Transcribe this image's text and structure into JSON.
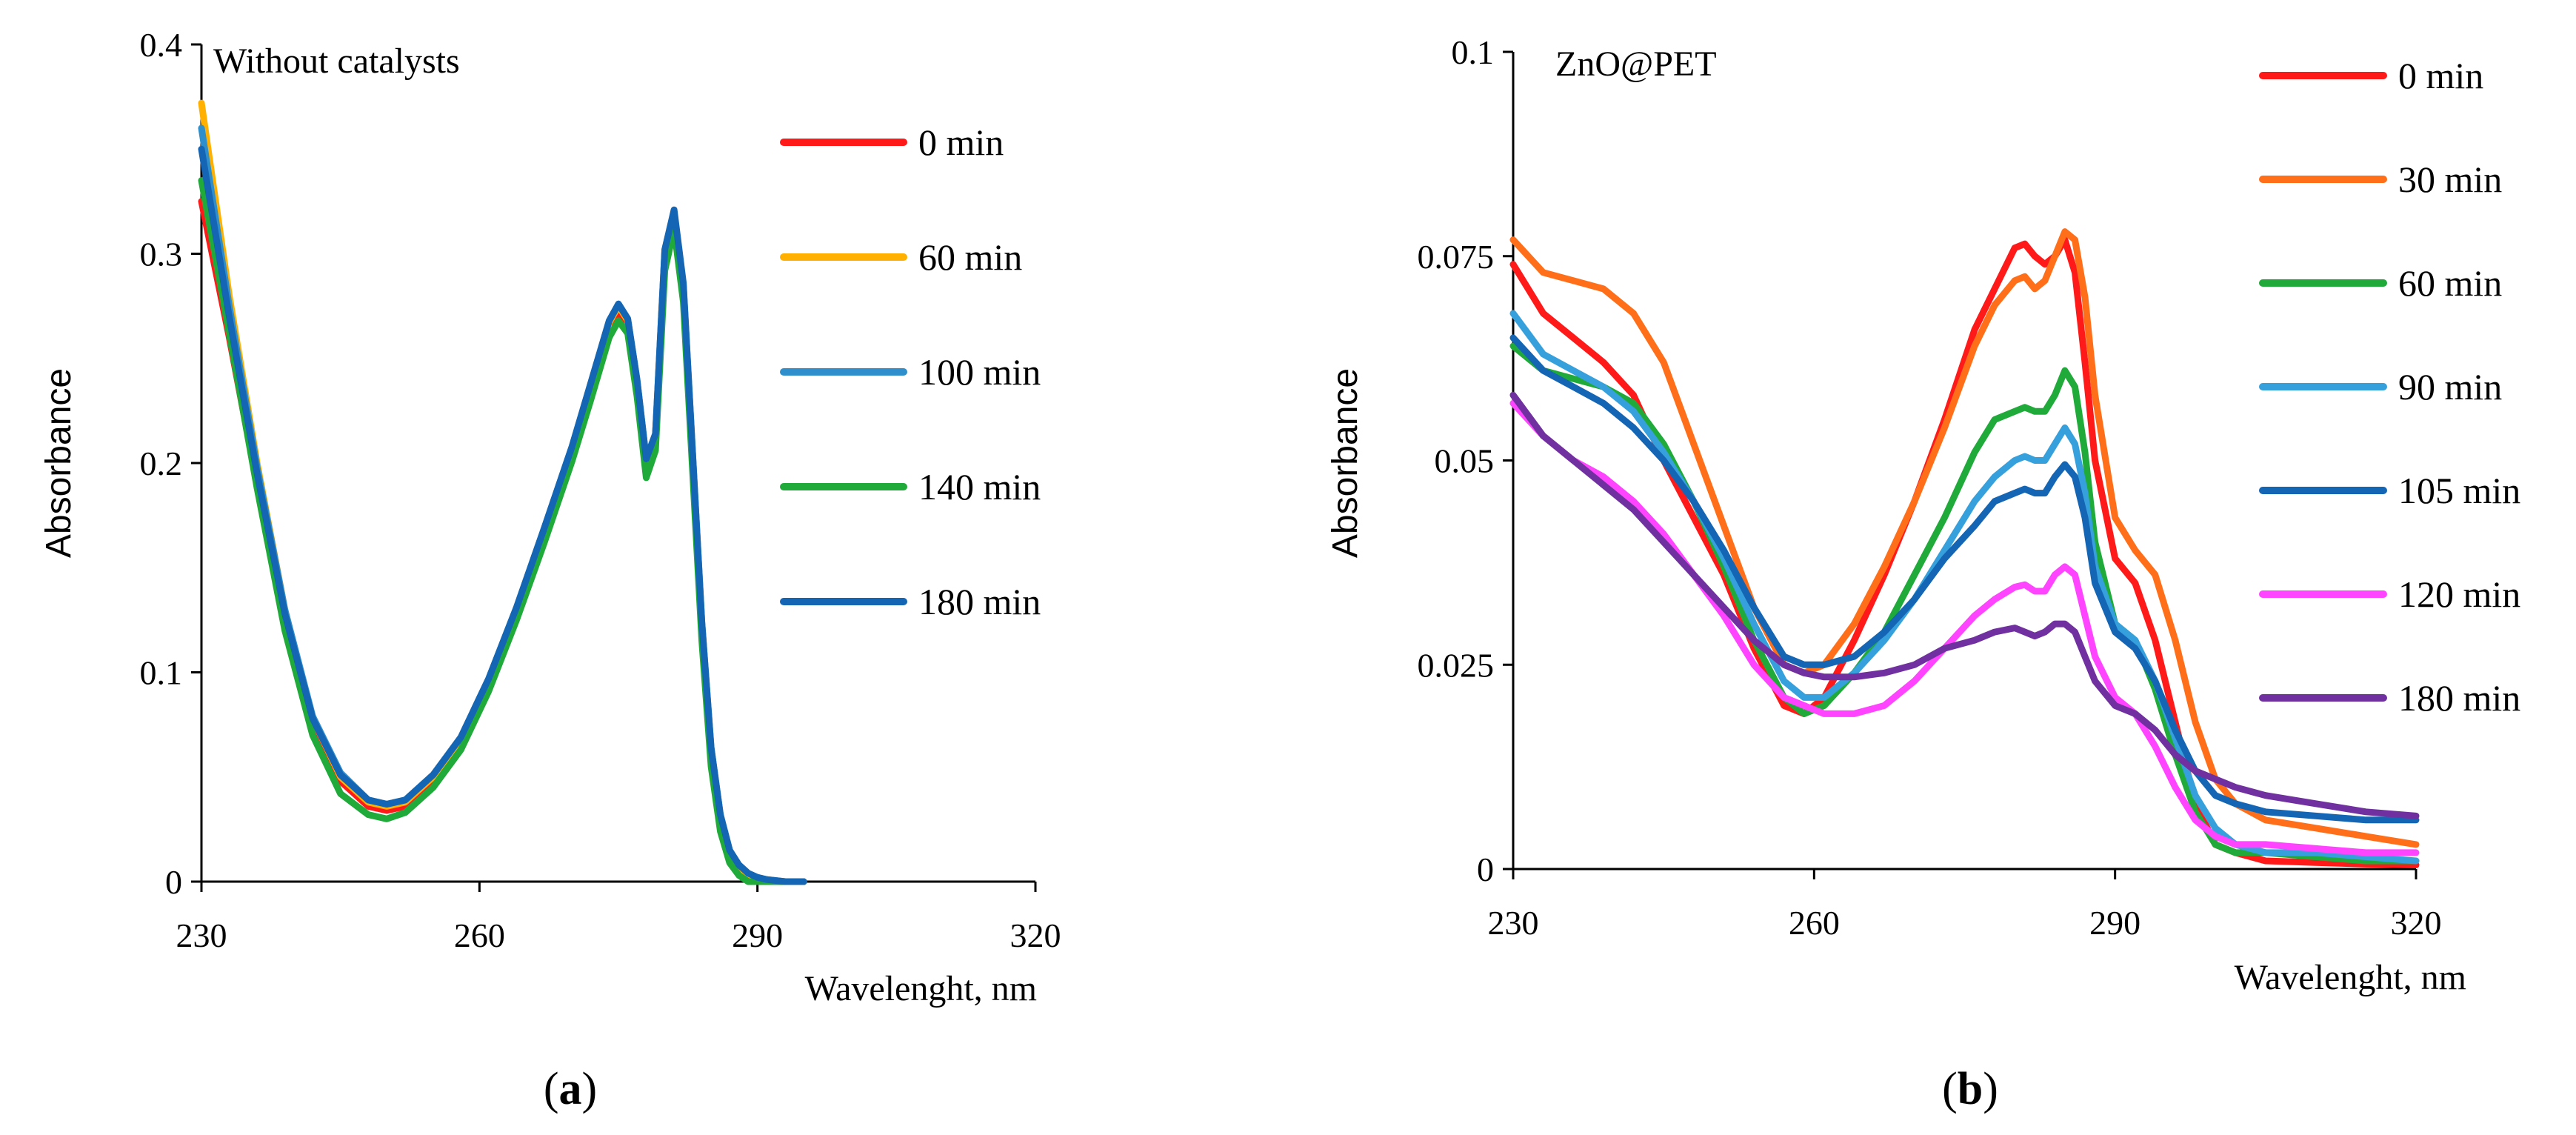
{
  "chart_data": [
    {
      "type": "line",
      "title": "Without catalysts",
      "caption": {
        "open": "(",
        "letter": "a",
        "close": ")"
      },
      "xlabel": "Wavelenght, nm",
      "ylabel": "Absorbance",
      "xlim": [
        230,
        320
      ],
      "ylim": [
        0,
        0.4
      ],
      "xticks": [
        230,
        260,
        290,
        320
      ],
      "yticks": [
        0,
        0.1,
        0.2,
        0.3,
        0.4
      ],
      "ytick_labels": [
        "0",
        "0.1",
        "0.2",
        "0.3",
        "0.4"
      ],
      "xtick_labels": [
        "230",
        "260",
        "290",
        "320"
      ],
      "series": [
        {
          "name": "0 min",
          "color": "#ff1a1a",
          "x": [
            230,
            233,
            236,
            239,
            242,
            245,
            248,
            250,
            252,
            255,
            258,
            261,
            264,
            267,
            270,
            272,
            274,
            275,
            276,
            277,
            278,
            279,
            280,
            281,
            282,
            283,
            284,
            285,
            286,
            287,
            288,
            289,
            290,
            291,
            293,
            295
          ],
          "y": [
            0.325,
            0.26,
            0.19,
            0.125,
            0.075,
            0.048,
            0.036,
            0.034,
            0.036,
            0.048,
            0.066,
            0.094,
            0.128,
            0.166,
            0.205,
            0.235,
            0.265,
            0.272,
            0.265,
            0.235,
            0.198,
            0.21,
            0.295,
            0.315,
            0.28,
            0.2,
            0.12,
            0.06,
            0.028,
            0.012,
            0.005,
            0.002,
            0,
            0,
            0,
            0
          ]
        },
        {
          "name": "60 min",
          "color": "#ffb000",
          "x": [
            230,
            233,
            236,
            239,
            242,
            245,
            248,
            250,
            252,
            255,
            258,
            261,
            264,
            267,
            270,
            272,
            274,
            275,
            276,
            277,
            278,
            279,
            280,
            281,
            282,
            283,
            284,
            285,
            286,
            287,
            288,
            289,
            290,
            291,
            293,
            295
          ],
          "y": [
            0.372,
            0.28,
            0.2,
            0.13,
            0.078,
            0.05,
            0.038,
            0.036,
            0.038,
            0.05,
            0.068,
            0.096,
            0.13,
            0.168,
            0.207,
            0.237,
            0.267,
            0.275,
            0.268,
            0.238,
            0.2,
            0.212,
            0.3,
            0.318,
            0.283,
            0.203,
            0.122,
            0.062,
            0.03,
            0.013,
            0.006,
            0.003,
            0.001,
            0,
            0,
            0
          ]
        },
        {
          "name": "100 min",
          "color": "#2e8fcc",
          "x": [
            230,
            233,
            236,
            239,
            242,
            245,
            248,
            250,
            252,
            255,
            258,
            261,
            264,
            267,
            270,
            272,
            274,
            275,
            276,
            277,
            278,
            279,
            280,
            281,
            282,
            283,
            284,
            285,
            286,
            287,
            288,
            289,
            290,
            291,
            293,
            295
          ],
          "y": [
            0.36,
            0.275,
            0.198,
            0.13,
            0.079,
            0.052,
            0.039,
            0.037,
            0.039,
            0.051,
            0.069,
            0.097,
            0.131,
            0.169,
            0.208,
            0.238,
            0.268,
            0.276,
            0.269,
            0.24,
            0.202,
            0.214,
            0.302,
            0.32,
            0.285,
            0.205,
            0.124,
            0.064,
            0.032,
            0.015,
            0.008,
            0.004,
            0.002,
            0.001,
            0,
            0
          ]
        },
        {
          "name": "140 min",
          "color": "#1faa3a",
          "x": [
            230,
            233,
            236,
            239,
            242,
            245,
            248,
            250,
            252,
            255,
            258,
            261,
            264,
            267,
            270,
            272,
            274,
            275,
            276,
            277,
            278,
            279,
            280,
            281,
            282,
            283,
            284,
            285,
            286,
            287,
            288,
            289,
            290,
            291,
            293,
            295
          ],
          "y": [
            0.335,
            0.262,
            0.188,
            0.12,
            0.07,
            0.042,
            0.032,
            0.03,
            0.033,
            0.045,
            0.063,
            0.091,
            0.125,
            0.162,
            0.201,
            0.23,
            0.26,
            0.268,
            0.262,
            0.232,
            0.193,
            0.206,
            0.292,
            0.312,
            0.277,
            0.196,
            0.115,
            0.055,
            0.024,
            0.009,
            0.003,
            0,
            0,
            0,
            0,
            0
          ]
        },
        {
          "name": "180 min",
          "color": "#1465b4",
          "x": [
            230,
            233,
            236,
            239,
            242,
            245,
            248,
            250,
            252,
            255,
            258,
            261,
            264,
            267,
            270,
            272,
            274,
            275,
            276,
            277,
            278,
            279,
            280,
            281,
            282,
            283,
            284,
            285,
            286,
            287,
            288,
            289,
            290,
            291,
            293,
            295
          ],
          "y": [
            0.35,
            0.27,
            0.195,
            0.128,
            0.078,
            0.051,
            0.039,
            0.037,
            0.039,
            0.051,
            0.069,
            0.097,
            0.131,
            0.169,
            0.208,
            0.238,
            0.268,
            0.276,
            0.269,
            0.24,
            0.202,
            0.214,
            0.302,
            0.321,
            0.286,
            0.205,
            0.124,
            0.064,
            0.032,
            0.015,
            0.008,
            0.004,
            0.002,
            0.001,
            0,
            0
          ]
        }
      ]
    },
    {
      "type": "line",
      "title": "ZnO@PET",
      "caption": {
        "open": "(",
        "letter": "b",
        "close": ")"
      },
      "xlabel": "Wavelenght, nm",
      "ylabel": "Absorbance",
      "xlim": [
        230,
        320
      ],
      "ylim": [
        0,
        0.1
      ],
      "xticks": [
        230,
        260,
        290,
        320
      ],
      "yticks": [
        0,
        0.025,
        0.05,
        0.075,
        0.1
      ],
      "ytick_labels": [
        "0",
        "0.025",
        "0.05",
        "0.075",
        "0.1"
      ],
      "xtick_labels": [
        "230",
        "260",
        "290",
        "320"
      ],
      "series": [
        {
          "name": "0 min",
          "color": "#ff1a1a",
          "x": [
            230,
            233,
            236,
            239,
            242,
            245,
            248,
            251,
            254,
            257,
            259,
            261,
            264,
            267,
            270,
            273,
            276,
            278,
            280,
            281,
            282,
            283,
            284,
            285,
            286,
            287,
            288,
            290,
            292,
            294,
            296,
            298,
            300,
            302,
            305,
            310,
            315,
            320
          ],
          "y": [
            0.074,
            0.068,
            0.065,
            0.062,
            0.058,
            0.05,
            0.043,
            0.036,
            0.027,
            0.02,
            0.019,
            0.021,
            0.028,
            0.036,
            0.045,
            0.055,
            0.066,
            0.071,
            0.076,
            0.0765,
            0.075,
            0.074,
            0.075,
            0.077,
            0.073,
            0.062,
            0.05,
            0.038,
            0.035,
            0.028,
            0.018,
            0.008,
            0.003,
            0.002,
            0.001,
            0.0008,
            0.0006,
            0.0005
          ]
        },
        {
          "name": "30  min",
          "color": "#ff6f1a",
          "x": [
            230,
            233,
            236,
            239,
            242,
            245,
            248,
            251,
            254,
            257,
            259,
            261,
            264,
            267,
            270,
            273,
            276,
            278,
            280,
            281,
            282,
            283,
            284,
            285,
            286,
            287,
            288,
            290,
            292,
            294,
            296,
            298,
            300,
            302,
            305,
            310,
            315,
            320
          ],
          "y": [
            0.077,
            0.073,
            0.072,
            0.071,
            0.068,
            0.062,
            0.052,
            0.042,
            0.032,
            0.025,
            0.024,
            0.025,
            0.03,
            0.037,
            0.045,
            0.054,
            0.064,
            0.069,
            0.072,
            0.0725,
            0.071,
            0.072,
            0.075,
            0.078,
            0.077,
            0.07,
            0.058,
            0.043,
            0.039,
            0.036,
            0.028,
            0.018,
            0.011,
            0.008,
            0.006,
            0.005,
            0.004,
            0.003
          ]
        },
        {
          "name": "60  min",
          "color": "#1faa3a",
          "x": [
            230,
            233,
            236,
            239,
            242,
            245,
            248,
            251,
            254,
            257,
            259,
            261,
            264,
            267,
            270,
            273,
            276,
            278,
            280,
            281,
            282,
            283,
            284,
            285,
            286,
            287,
            288,
            290,
            292,
            294,
            296,
            298,
            300,
            302,
            305,
            310,
            315,
            320
          ],
          "y": [
            0.064,
            0.061,
            0.06,
            0.059,
            0.057,
            0.052,
            0.045,
            0.037,
            0.028,
            0.021,
            0.019,
            0.02,
            0.024,
            0.029,
            0.036,
            0.043,
            0.051,
            0.055,
            0.056,
            0.0565,
            0.056,
            0.056,
            0.058,
            0.061,
            0.059,
            0.051,
            0.04,
            0.03,
            0.028,
            0.022,
            0.014,
            0.007,
            0.003,
            0.002,
            0.002,
            0.0015,
            0.001,
            0.001
          ]
        },
        {
          "name": "90  min",
          "color": "#36a0dc",
          "x": [
            230,
            233,
            236,
            239,
            242,
            245,
            248,
            251,
            254,
            257,
            259,
            261,
            264,
            267,
            270,
            273,
            276,
            278,
            280,
            281,
            282,
            283,
            284,
            285,
            286,
            287,
            288,
            290,
            292,
            294,
            296,
            298,
            300,
            302,
            305,
            310,
            315,
            320
          ],
          "y": [
            0.068,
            0.063,
            0.061,
            0.059,
            0.056,
            0.051,
            0.045,
            0.038,
            0.03,
            0.023,
            0.021,
            0.021,
            0.024,
            0.028,
            0.033,
            0.039,
            0.045,
            0.048,
            0.05,
            0.0505,
            0.05,
            0.05,
            0.052,
            0.054,
            0.052,
            0.046,
            0.037,
            0.03,
            0.028,
            0.023,
            0.016,
            0.009,
            0.005,
            0.003,
            0.002,
            0.002,
            0.0015,
            0.001
          ]
        },
        {
          "name": "105  min",
          "color": "#1465b4",
          "x": [
            230,
            233,
            236,
            239,
            242,
            245,
            248,
            251,
            254,
            257,
            259,
            261,
            264,
            267,
            270,
            273,
            276,
            278,
            280,
            281,
            282,
            283,
            284,
            285,
            286,
            287,
            288,
            290,
            292,
            294,
            296,
            298,
            300,
            302,
            305,
            310,
            315,
            320
          ],
          "y": [
            0.065,
            0.061,
            0.059,
            0.057,
            0.054,
            0.05,
            0.045,
            0.039,
            0.032,
            0.026,
            0.025,
            0.025,
            0.026,
            0.029,
            0.033,
            0.038,
            0.042,
            0.045,
            0.046,
            0.0465,
            0.046,
            0.046,
            0.048,
            0.0495,
            0.048,
            0.043,
            0.035,
            0.029,
            0.027,
            0.023,
            0.017,
            0.012,
            0.009,
            0.008,
            0.007,
            0.0065,
            0.006,
            0.006
          ]
        },
        {
          "name": "120 min",
          "color": "#ff44ff",
          "x": [
            230,
            233,
            236,
            239,
            242,
            245,
            248,
            251,
            254,
            257,
            259,
            261,
            264,
            267,
            270,
            273,
            276,
            278,
            280,
            281,
            282,
            283,
            284,
            285,
            286,
            287,
            288,
            290,
            292,
            294,
            296,
            298,
            300,
            302,
            305,
            310,
            315,
            320
          ],
          "y": [
            0.057,
            0.053,
            0.05,
            0.048,
            0.045,
            0.041,
            0.036,
            0.031,
            0.025,
            0.021,
            0.02,
            0.019,
            0.019,
            0.02,
            0.023,
            0.027,
            0.031,
            0.033,
            0.0345,
            0.0348,
            0.034,
            0.034,
            0.036,
            0.037,
            0.036,
            0.031,
            0.026,
            0.021,
            0.019,
            0.015,
            0.01,
            0.006,
            0.004,
            0.003,
            0.003,
            0.0025,
            0.002,
            0.002
          ]
        },
        {
          "name": "180  min",
          "color": "#7030a0",
          "x": [
            230,
            233,
            236,
            239,
            242,
            245,
            248,
            251,
            254,
            257,
            259,
            261,
            264,
            267,
            270,
            273,
            276,
            278,
            280,
            281,
            282,
            283,
            284,
            285,
            286,
            287,
            288,
            290,
            292,
            294,
            296,
            298,
            300,
            302,
            305,
            310,
            315,
            320
          ],
          "y": [
            0.058,
            0.053,
            0.05,
            0.047,
            0.044,
            0.04,
            0.036,
            0.032,
            0.028,
            0.025,
            0.024,
            0.0235,
            0.0235,
            0.024,
            0.025,
            0.027,
            0.028,
            0.029,
            0.0295,
            0.029,
            0.0285,
            0.029,
            0.03,
            0.03,
            0.029,
            0.026,
            0.023,
            0.02,
            0.019,
            0.017,
            0.014,
            0.012,
            0.011,
            0.01,
            0.009,
            0.008,
            0.007,
            0.0065
          ]
        }
      ]
    }
  ]
}
